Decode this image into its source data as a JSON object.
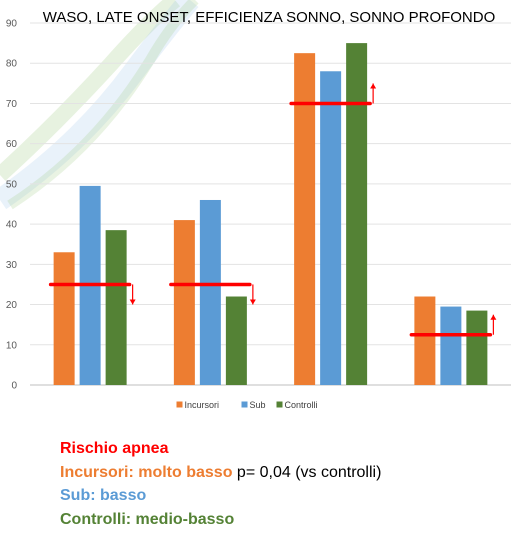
{
  "colors": {
    "Incursori": "#ED7D31",
    "Sub": "#5B9BD5",
    "Controlli": "#548235",
    "risk_line": "#FF0000",
    "swoosh_green": "#A9D18E",
    "swoosh_blue": "#9DC3E6"
  },
  "chart_data": {
    "type": "bar",
    "title": "WASO, LATE ONSET, EFFICIENZA SONNO, SONNO PROFONDO",
    "categories": [
      "",
      "",
      "",
      ""
    ],
    "series": [
      {
        "name": "Incursori",
        "values": [
          33,
          41,
          82.5,
          22
        ]
      },
      {
        "name": "Sub",
        "values": [
          49.5,
          46,
          78,
          19.5
        ]
      },
      {
        "name": "Controlli",
        "values": [
          38.5,
          22,
          85,
          18.5
        ]
      }
    ],
    "ylim": [
      0,
      90
    ],
    "yticks": [
      "0",
      "10",
      "20",
      "30",
      "40",
      "50",
      "60",
      "70",
      "80",
      "90"
    ],
    "xlabel": "",
    "ylabel": "",
    "grid": true,
    "legend_position": "bottom",
    "reference_lines": [
      {
        "value": 25,
        "direction": "down"
      },
      {
        "value": 25,
        "direction": "down"
      },
      {
        "value": 70,
        "direction": "up"
      },
      {
        "value": 12.5,
        "direction": "up"
      }
    ]
  },
  "notes": {
    "line1": "Rischio apnea",
    "line2_label": "Incursori: molto basso",
    "line2_rest": " p= 0,04 (vs controlli)",
    "line3": "Sub: basso",
    "line4": "Controlli: medio-basso"
  }
}
